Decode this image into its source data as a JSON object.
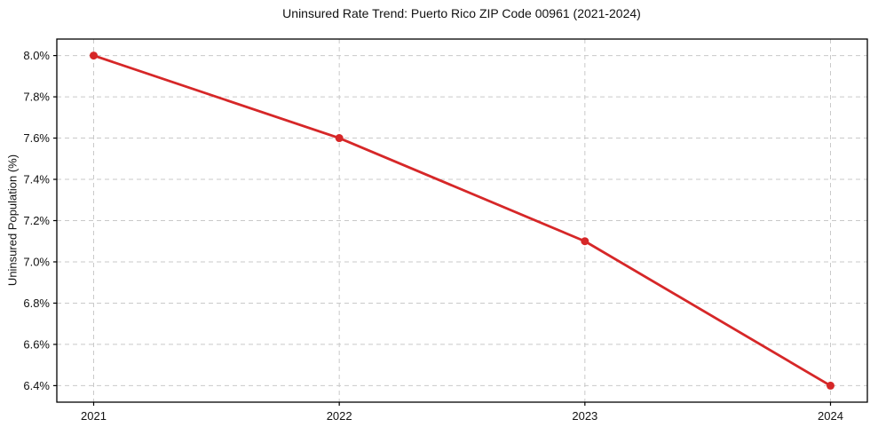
{
  "chart_data": {
    "type": "line",
    "title": "Uninsured Rate Trend: Puerto Rico ZIP Code 00961 (2021-2024)",
    "ylabel": "Uninsured Population (%)",
    "x": [
      2021,
      2022,
      2023,
      2024
    ],
    "values": [
      8.0,
      7.6,
      7.1,
      6.4
    ],
    "xtick_labels": [
      "2021",
      "2022",
      "2023",
      "2024"
    ],
    "ytick_values": [
      6.4,
      6.6,
      6.8,
      7.0,
      7.2,
      7.4,
      7.6,
      7.8,
      8.0
    ],
    "ytick_labels": [
      "6.4%",
      "6.6%",
      "6.8%",
      "7.0%",
      "7.2%",
      "7.4%",
      "7.6%",
      "7.8%",
      "8.0%"
    ],
    "xlim": [
      2020.85,
      2024.15
    ],
    "ylim": [
      6.32,
      8.08
    ],
    "grid": true,
    "grid_style": "dashed",
    "legend_position": "none",
    "line_color": "#d62728",
    "marker": "circle",
    "grid_color": "#c9c9c9",
    "spine_color": "#000000",
    "tick_color": "#000000"
  }
}
